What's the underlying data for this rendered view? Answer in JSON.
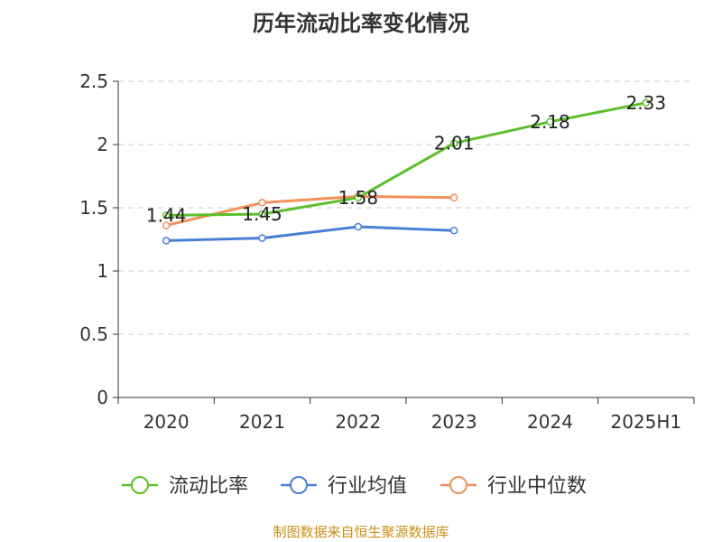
{
  "chart_data": {
    "type": "line",
    "title": "历年流动比率变化情况",
    "categories": [
      "2020",
      "2021",
      "2022",
      "2023",
      "2024",
      "2025H1"
    ],
    "ylim": [
      0,
      2.5
    ],
    "yticks": [
      "0",
      "0.5",
      "1",
      "1.5",
      "2",
      "2.5"
    ],
    "grid": true,
    "legend_position": "bottom",
    "series": [
      {
        "name": "流动比率",
        "color": "#5bbf2c",
        "values": [
          1.44,
          1.45,
          1.58,
          2.01,
          2.18,
          2.33
        ],
        "labels": [
          "1.44",
          "1.45",
          "1.58",
          "2.01",
          "2.18",
          "2.33"
        ]
      },
      {
        "name": "行业均值",
        "color": "#4a7fd8",
        "values": [
          1.24,
          1.26,
          1.35,
          1.32,
          null,
          null
        ]
      },
      {
        "name": "行业中位数",
        "color": "#f0905a",
        "values": [
          1.36,
          1.54,
          1.59,
          1.58,
          null,
          null
        ]
      }
    ]
  },
  "source": "制图数据来自恒生聚源数据库"
}
